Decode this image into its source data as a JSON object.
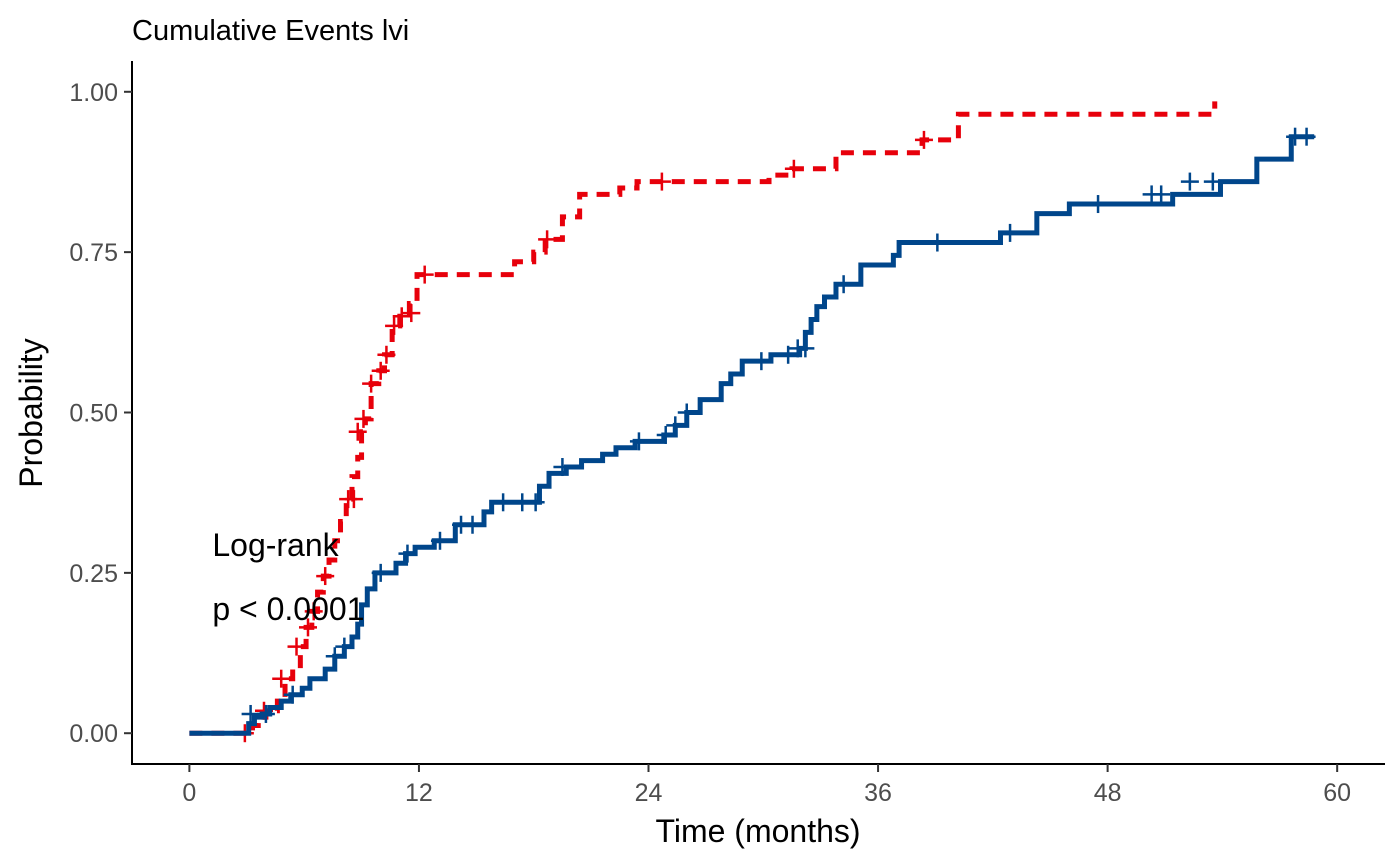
{
  "chart_data": {
    "type": "line",
    "title": "Cumulative Events lvi",
    "xlabel": "Time (months)",
    "ylabel": "Probability",
    "xlim": [
      -3,
      62.5
    ],
    "ylim": [
      -0.048,
      1.048
    ],
    "xticks": [
      0,
      12,
      24,
      36,
      48,
      60
    ],
    "xtick_labels": [
      "0",
      "12",
      "24",
      "36",
      "48",
      "60"
    ],
    "yticks": [
      0,
      0.25,
      0.5,
      0.75,
      1.0
    ],
    "ytick_labels": [
      "0.00",
      "0.25",
      "0.50",
      "0.75",
      "1.00"
    ],
    "grid": false,
    "legend": "none",
    "annotation": {
      "line1": "Log-rank",
      "line2": "p < 0.0001",
      "x": 1.2
    },
    "series": [
      {
        "color": "#E7000B",
        "dash": "dashed",
        "steps": [
          [
            0,
            0
          ],
          [
            2.9,
            0
          ],
          [
            3.3,
            0.012
          ],
          [
            3.6,
            0.025
          ],
          [
            4.0,
            0.035
          ],
          [
            4.6,
            0.05
          ],
          [
            5.0,
            0.085
          ],
          [
            5.4,
            0.1
          ],
          [
            5.8,
            0.135
          ],
          [
            6.1,
            0.165
          ],
          [
            6.4,
            0.19
          ],
          [
            6.7,
            0.22
          ],
          [
            7.0,
            0.245
          ],
          [
            7.3,
            0.27
          ],
          [
            7.6,
            0.3
          ],
          [
            7.9,
            0.33
          ],
          [
            8.2,
            0.365
          ],
          [
            8.5,
            0.4
          ],
          [
            8.8,
            0.43
          ],
          [
            9.0,
            0.47
          ],
          [
            9.2,
            0.49
          ],
          [
            9.5,
            0.545
          ],
          [
            9.9,
            0.565
          ],
          [
            10.2,
            0.59
          ],
          [
            10.6,
            0.635
          ],
          [
            11.0,
            0.65
          ],
          [
            11.5,
            0.67
          ],
          [
            11.9,
            0.715
          ],
          [
            17.0,
            0.735
          ],
          [
            18.0,
            0.75
          ],
          [
            18.6,
            0.77
          ],
          [
            19.5,
            0.805
          ],
          [
            20.4,
            0.84
          ],
          [
            22.5,
            0.85
          ],
          [
            23.4,
            0.86
          ],
          [
            30.3,
            0.87
          ],
          [
            31.5,
            0.88
          ],
          [
            33.8,
            0.905
          ],
          [
            38.3,
            0.925
          ],
          [
            40.2,
            0.965
          ],
          [
            53.6,
            0.985
          ]
        ],
        "end_x": 53.6,
        "censors": [
          [
            2.9,
            0
          ],
          [
            3.9,
            0.035
          ],
          [
            4.8,
            0.085
          ],
          [
            5.6,
            0.135
          ],
          [
            6.2,
            0.165
          ],
          [
            6.5,
            0.19
          ],
          [
            7.1,
            0.245
          ],
          [
            8.3,
            0.365
          ],
          [
            8.6,
            0.365
          ],
          [
            8.8,
            0.47
          ],
          [
            9.1,
            0.49
          ],
          [
            9.5,
            0.545
          ],
          [
            10.0,
            0.565
          ],
          [
            10.3,
            0.59
          ],
          [
            10.7,
            0.635
          ],
          [
            11.1,
            0.65
          ],
          [
            11.6,
            0.655
          ],
          [
            12.3,
            0.715
          ],
          [
            18.7,
            0.77
          ],
          [
            24.7,
            0.86
          ],
          [
            31.6,
            0.88
          ],
          [
            38.4,
            0.925
          ]
        ]
      },
      {
        "color": "#00468B",
        "dash": "solid",
        "steps": [
          [
            0,
            0
          ],
          [
            3.1,
            0.015
          ],
          [
            3.4,
            0.025
          ],
          [
            3.8,
            0.03
          ],
          [
            4.2,
            0.04
          ],
          [
            4.8,
            0.05
          ],
          [
            5.3,
            0.06
          ],
          [
            5.9,
            0.07
          ],
          [
            6.3,
            0.085
          ],
          [
            7.1,
            0.1
          ],
          [
            7.6,
            0.12
          ],
          [
            8.1,
            0.135
          ],
          [
            8.5,
            0.15
          ],
          [
            8.8,
            0.17
          ],
          [
            9.0,
            0.2
          ],
          [
            9.3,
            0.225
          ],
          [
            9.7,
            0.25
          ],
          [
            10.8,
            0.265
          ],
          [
            11.3,
            0.28
          ],
          [
            11.8,
            0.29
          ],
          [
            12.8,
            0.3
          ],
          [
            13.9,
            0.325
          ],
          [
            15.4,
            0.345
          ],
          [
            15.8,
            0.36
          ],
          [
            18.3,
            0.385
          ],
          [
            18.8,
            0.405
          ],
          [
            19.7,
            0.415
          ],
          [
            20.5,
            0.425
          ],
          [
            21.6,
            0.435
          ],
          [
            22.3,
            0.445
          ],
          [
            23.3,
            0.455
          ],
          [
            24.8,
            0.465
          ],
          [
            25.4,
            0.48
          ],
          [
            26.0,
            0.5
          ],
          [
            26.7,
            0.52
          ],
          [
            27.8,
            0.545
          ],
          [
            28.3,
            0.56
          ],
          [
            28.9,
            0.58
          ],
          [
            30.4,
            0.59
          ],
          [
            31.9,
            0.6
          ],
          [
            32.2,
            0.625
          ],
          [
            32.5,
            0.645
          ],
          [
            32.8,
            0.665
          ],
          [
            33.2,
            0.68
          ],
          [
            33.8,
            0.7
          ],
          [
            35.1,
            0.73
          ],
          [
            36.8,
            0.745
          ],
          [
            37.1,
            0.765
          ],
          [
            42.4,
            0.78
          ],
          [
            44.3,
            0.81
          ],
          [
            46.0,
            0.825
          ],
          [
            51.4,
            0.84
          ],
          [
            53.9,
            0.86
          ],
          [
            55.8,
            0.895
          ],
          [
            57.6,
            0.93
          ]
        ],
        "end_x": 58.8,
        "censors": [
          [
            3.2,
            0.03
          ],
          [
            4.0,
            0.03
          ],
          [
            5.4,
            0.06
          ],
          [
            7.6,
            0.12
          ],
          [
            8.1,
            0.135
          ],
          [
            10.0,
            0.25
          ],
          [
            11.4,
            0.28
          ],
          [
            13.1,
            0.3
          ],
          [
            14.2,
            0.325
          ],
          [
            14.8,
            0.325
          ],
          [
            16.4,
            0.36
          ],
          [
            17.4,
            0.36
          ],
          [
            18.1,
            0.36
          ],
          [
            19.5,
            0.415
          ],
          [
            23.5,
            0.455
          ],
          [
            24.9,
            0.465
          ],
          [
            25.4,
            0.48
          ],
          [
            26.0,
            0.5
          ],
          [
            29.9,
            0.58
          ],
          [
            31.3,
            0.59
          ],
          [
            31.8,
            0.6
          ],
          [
            32.2,
            0.6
          ],
          [
            34.2,
            0.7
          ],
          [
            39.1,
            0.765
          ],
          [
            42.9,
            0.78
          ],
          [
            47.5,
            0.825
          ],
          [
            50.3,
            0.84
          ],
          [
            50.8,
            0.84
          ],
          [
            52.3,
            0.86
          ],
          [
            53.5,
            0.86
          ],
          [
            57.8,
            0.93
          ],
          [
            58.4,
            0.93
          ]
        ]
      }
    ]
  }
}
